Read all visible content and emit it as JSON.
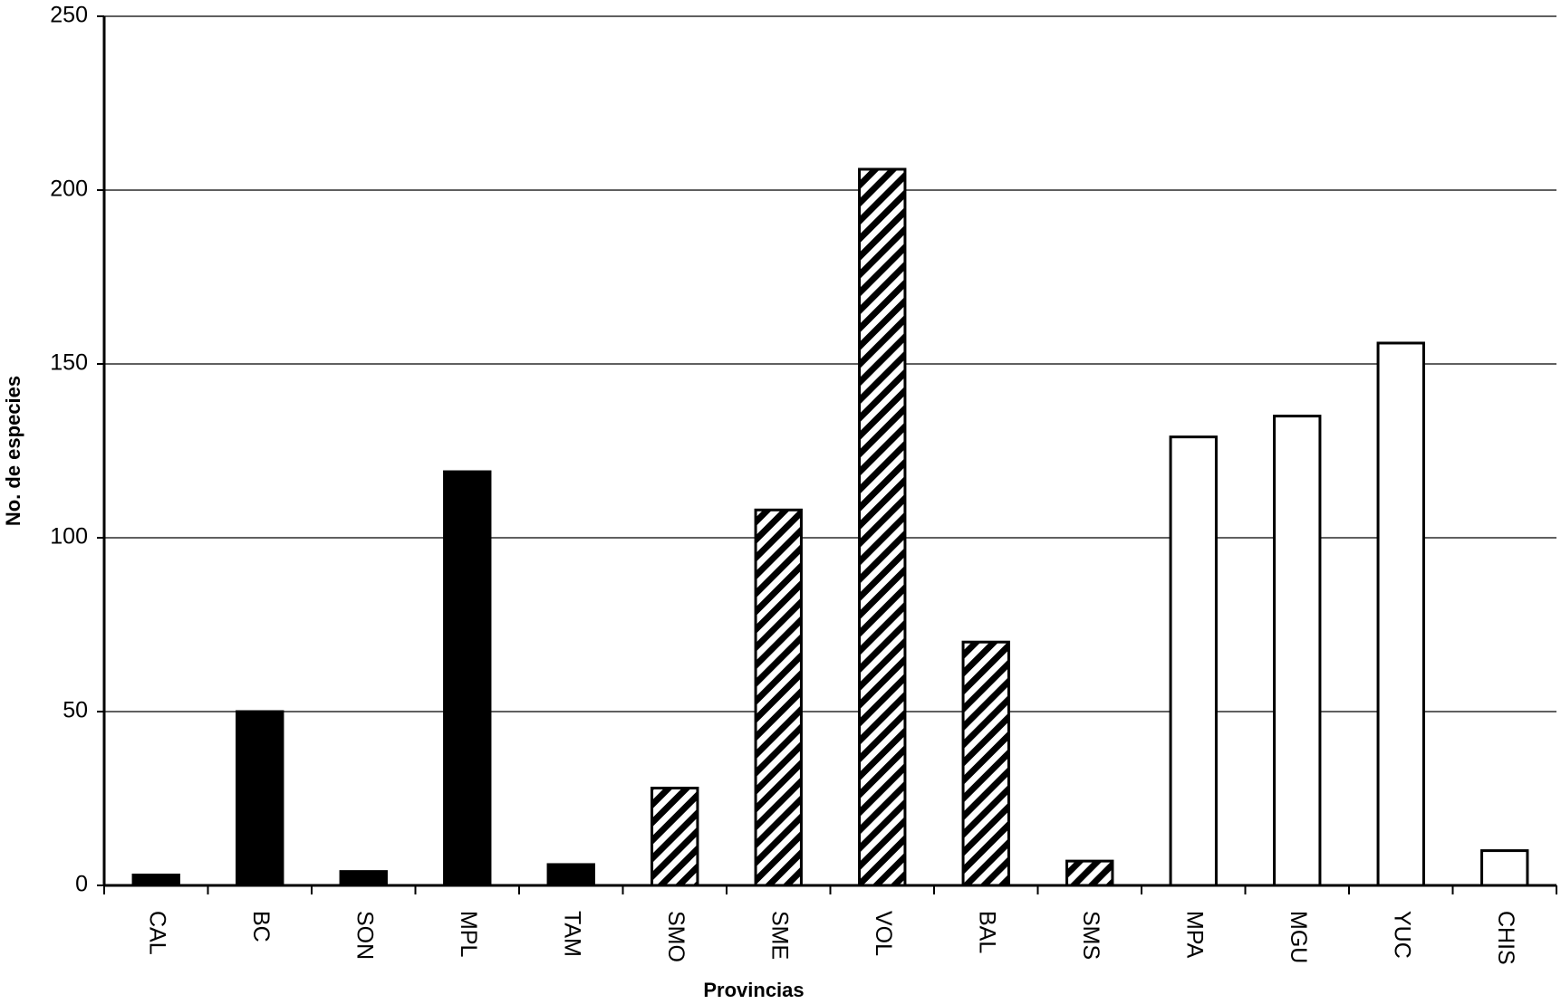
{
  "chart_data": {
    "type": "bar",
    "x_label": "Provincias",
    "y_label": "No. de especies",
    "categories": [
      "CAL",
      "BC",
      "SON",
      "MPL",
      "TAM",
      "SMO",
      "SME",
      "VOL",
      "BAL",
      "SMS",
      "MPA",
      "MGU",
      "YUC",
      "CHIS"
    ],
    "values": [
      3,
      50,
      4,
      119,
      6,
      28,
      108,
      206,
      70,
      7,
      129,
      135,
      156,
      10
    ],
    "fills": [
      "#000000",
      "#000000",
      "#000000",
      "#000000",
      "#000000",
      "hatch",
      "hatch",
      "hatch",
      "hatch",
      "hatch",
      "#ffffff",
      "#ffffff",
      "#ffffff",
      "#ffffff"
    ],
    "ylim": [
      0,
      250
    ],
    "yticks": [
      0,
      50,
      100,
      150,
      200,
      250
    ],
    "grid": true
  }
}
